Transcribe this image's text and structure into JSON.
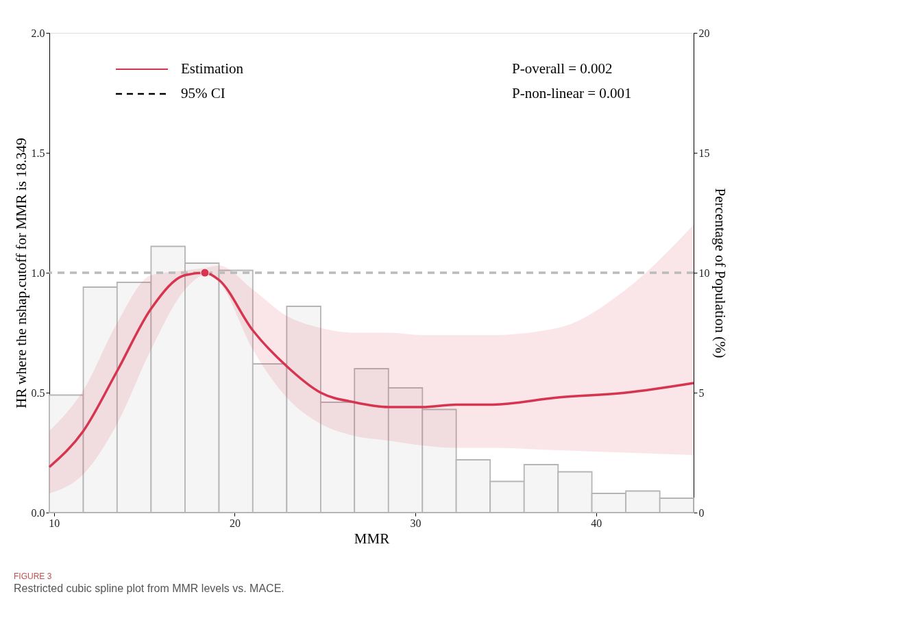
{
  "chart_data": {
    "type": "line",
    "title": "FIGURE 3",
    "subtitle": "Restricted cubic spline plot from MMR levels vs. MACE.",
    "xlabel": "MMR",
    "ylabel": "HR where the nshap.cutoff for MMR is 18.349",
    "y2label": "Percentage of Population (%)",
    "xlim": [
      9.74,
      45.4
    ],
    "xticks": [
      10,
      20,
      30,
      40
    ],
    "ylim": [
      0,
      2
    ],
    "yticks": [
      {
        "value": 0,
        "label": "0.0"
      },
      {
        "value": 0.5,
        "label": "0.5"
      },
      {
        "value": 1,
        "label": "1.0"
      },
      {
        "value": 1.5,
        "label": "1.5"
      },
      {
        "value": 2,
        "label": "2.0"
      }
    ],
    "y2lim": [
      0,
      20
    ],
    "y2ticks": [
      0,
      5,
      10,
      15,
      20
    ],
    "bins": [
      9.74,
      11.62,
      13.49,
      15.37,
      17.25,
      19.13,
      21.0,
      22.88,
      24.76,
      26.63,
      28.51,
      30.39,
      32.26,
      34.14,
      36.02,
      37.9,
      39.77,
      41.65,
      43.53,
      45.4
    ],
    "series": [
      {
        "type": "histogram",
        "axis": "y2",
        "color": "#f5f5f5",
        "values": [
          4.9,
          9.4,
          9.6,
          11.1,
          10.4,
          10.1,
          6.2,
          8.6,
          4.6,
          6.0,
          5.2,
          4.3,
          2.2,
          1.3,
          2.0,
          1.7,
          0.8,
          0.9,
          0.6
        ]
      },
      {
        "name": "Estimation",
        "color": "#d6344f",
        "x": [
          9.74,
          11.62,
          13.49,
          15.37,
          17.25,
          18.35,
          19.13,
          21.0,
          22.88,
          24.76,
          26.63,
          28.51,
          30.39,
          32.26,
          34.14,
          37.9,
          41.65,
          45.4
        ],
        "values": [
          0.19,
          0.34,
          0.59,
          0.85,
          0.99,
          1.0,
          0.97,
          0.76,
          0.61,
          0.5,
          0.46,
          0.44,
          0.44,
          0.45,
          0.45,
          0.48,
          0.5,
          0.54
        ],
        "lower": [
          0.08,
          0.16,
          0.37,
          0.68,
          0.93,
          0.99,
          0.96,
          0.68,
          0.48,
          0.37,
          0.32,
          0.3,
          0.28,
          0.27,
          0.27,
          0.26,
          0.25,
          0.24
        ],
        "upper": [
          0.34,
          0.51,
          0.79,
          0.99,
          1.01,
          1.02,
          1.03,
          0.93,
          0.82,
          0.77,
          0.75,
          0.75,
          0.74,
          0.74,
          0.74,
          0.77,
          0.93,
          1.2
        ]
      },
      {
        "type": "scatter",
        "color": "#d6344f",
        "x": [
          18.349
        ],
        "values": [
          1.0
        ]
      }
    ],
    "ref_lines": [
      {
        "axis": "y",
        "value": 1.0,
        "color": "#bbbbbb",
        "line_style": "dashed"
      }
    ],
    "annotations": [
      "95% CI",
      "P-overall = 0.002",
      "P-non-linear = 0.001"
    ],
    "legend": "top left",
    "grid": false
  }
}
